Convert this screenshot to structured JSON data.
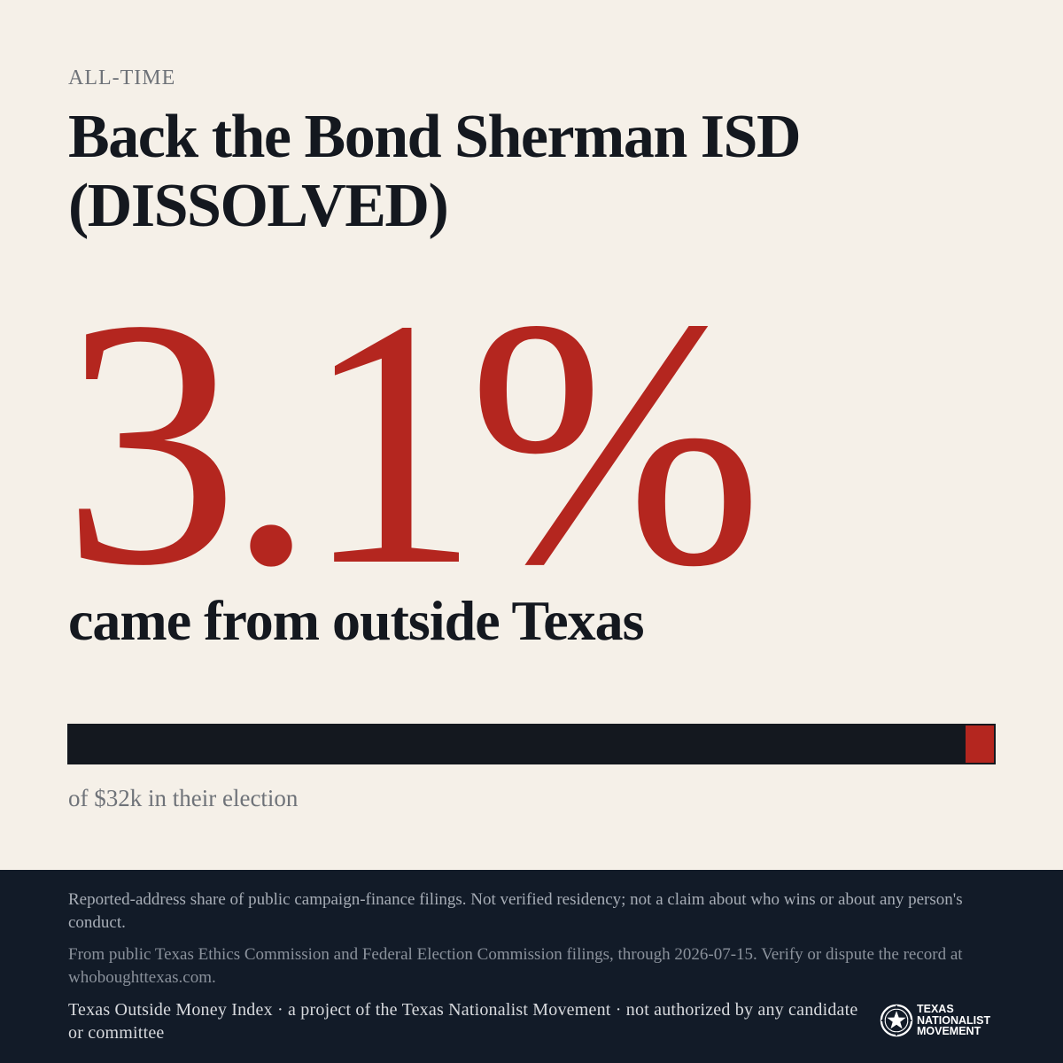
{
  "header": {
    "eyebrow": "ALL-TIME",
    "title": "Back the Bond Sherman ISD (DISSOLVED)"
  },
  "stat": {
    "value": "3.1%",
    "caption": "came from outside Texas"
  },
  "bar": {
    "outside_share_percent": 3.1,
    "caption": "of $32k in their election"
  },
  "colors": {
    "background": "#f5f0e8",
    "accent_red": "#b4261f",
    "ink": "#14181f",
    "footer_bg": "#121b28"
  },
  "footer": {
    "disclaimer": "Reported-address share of public campaign-finance filings. Not verified residency; not a claim about who wins or about any person's conduct.",
    "source": "From public Texas Ethics Commission and Federal Election Commission filings, through 2026-07-15. Verify or dispute the record at whoboughttexas.com.",
    "credit": "Texas Outside Money Index · a project of the Texas Nationalist Movement · not authorized by any candidate or committee",
    "logo": {
      "icon": "star-seal-icon",
      "line1": "TEXAS",
      "line2": "NATIONALIST",
      "line3": "MOVEMENT"
    }
  }
}
